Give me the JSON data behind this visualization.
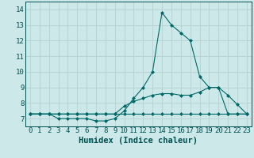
{
  "title": "",
  "xlabel": "Humidex (Indice chaleur)",
  "ylabel": "",
  "xlim": [
    -0.5,
    23.5
  ],
  "ylim": [
    6.5,
    14.5
  ],
  "yticks": [
    7,
    8,
    9,
    10,
    11,
    12,
    13,
    14
  ],
  "xticks": [
    0,
    1,
    2,
    3,
    4,
    5,
    6,
    7,
    8,
    9,
    10,
    11,
    12,
    13,
    14,
    15,
    16,
    17,
    18,
    19,
    20,
    21,
    22,
    23
  ],
  "bg_color": "#cce8e8",
  "grid_color": "#b8d4d4",
  "line_color": "#006868",
  "line1_x": [
    0,
    1,
    2,
    3,
    4,
    5,
    6,
    7,
    8,
    9,
    10,
    11,
    12,
    13,
    14,
    15,
    16,
    17,
    18,
    19,
    20,
    21,
    22,
    23
  ],
  "line1_y": [
    7.3,
    7.3,
    7.3,
    7.0,
    7.0,
    7.0,
    7.0,
    6.85,
    6.85,
    7.0,
    7.5,
    8.3,
    9.0,
    10.0,
    13.8,
    13.0,
    12.5,
    12.0,
    9.7,
    9.0,
    9.0,
    8.5,
    7.9,
    7.3
  ],
  "line2_x": [
    0,
    1,
    2,
    3,
    4,
    5,
    6,
    7,
    8,
    9,
    10,
    11,
    12,
    13,
    14,
    15,
    16,
    17,
    18,
    19,
    20,
    21,
    22,
    23
  ],
  "line2_y": [
    7.3,
    7.3,
    7.3,
    7.3,
    7.3,
    7.3,
    7.3,
    7.3,
    7.3,
    7.3,
    7.8,
    8.1,
    8.3,
    8.5,
    8.6,
    8.6,
    8.5,
    8.5,
    8.7,
    9.0,
    9.0,
    7.3,
    7.3,
    7.3
  ],
  "line3_x": [
    0,
    1,
    2,
    3,
    4,
    5,
    6,
    7,
    8,
    9,
    10,
    11,
    12,
    13,
    14,
    15,
    16,
    17,
    18,
    19,
    20,
    21,
    22,
    23
  ],
  "line3_y": [
    7.3,
    7.3,
    7.3,
    7.3,
    7.3,
    7.3,
    7.3,
    7.3,
    7.3,
    7.3,
    7.3,
    7.3,
    7.3,
    7.3,
    7.3,
    7.3,
    7.3,
    7.3,
    7.3,
    7.3,
    7.3,
    7.3,
    7.3,
    7.3
  ],
  "tick_fontsize": 6.5,
  "xlabel_fontsize": 7.5,
  "text_color": "#005050"
}
